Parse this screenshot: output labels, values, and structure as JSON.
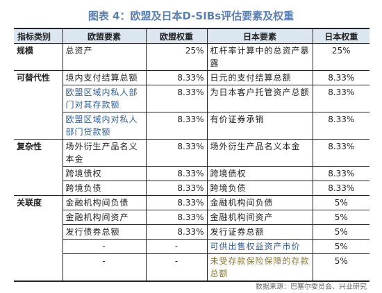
{
  "title": "图表 4：欧盟及日本D-SIBs评估要素及权重",
  "headers": {
    "category": "指标类别",
    "eu": "欧盟要素",
    "eu_weight": "欧盟权重",
    "jp": "日本要素",
    "jp_weight": "日本权重"
  },
  "groups": [
    {
      "category": "规模",
      "rows": [
        {
          "eu": "总资产",
          "eu_weight": "25%",
          "jp": "杠杆率计算中的总资产暴露",
          "jp_weight": "25%"
        }
      ]
    },
    {
      "category": "可替代性",
      "rows": [
        {
          "eu": "境内支付结算总额",
          "eu_weight": "8.33%",
          "jp": "日元的支付结算总额",
          "jp_weight": "8.33%"
        },
        {
          "eu": "欧盟区域内私人部门对其存款额",
          "eu_weight": "8.33%",
          "jp": "为日本客户托管资产总额",
          "jp_weight": "8.33%"
        },
        {
          "eu": "欧盟区域内对私人部门贷款额",
          "eu_weight": "8.33%",
          "jp": "有价证券承销",
          "jp_weight": "8.33%"
        }
      ]
    },
    {
      "category": "复杂性",
      "rows": [
        {
          "eu": "场外衍生产品名义本金",
          "eu_weight": "8.33%",
          "jp": "场外衍生产品名义本金",
          "jp_weight": "8.33%"
        },
        {
          "eu": "跨境债权",
          "eu_weight": "8.33%",
          "jp": "跨境债权",
          "jp_weight": "8.33%"
        },
        {
          "eu": "跨境负债",
          "eu_weight": "8.33%",
          "jp": "跨境负债",
          "jp_weight": "8.33%"
        }
      ]
    },
    {
      "category": "关联度",
      "rows": [
        {
          "eu": "金融机构间负债",
          "eu_weight": "8.33%",
          "jp": "金融机构间负债",
          "jp_weight": "5%"
        },
        {
          "eu": "金融机构间资产",
          "eu_weight": "8.33%",
          "jp": "金融机构间资产",
          "jp_weight": "5%"
        },
        {
          "eu": "发行债券总额",
          "eu_weight": "8.33%",
          "jp": "发行证券总额",
          "jp_weight": "5%"
        },
        {
          "eu": "-",
          "eu_weight": "-",
          "jp": "可供出售权益资产市价",
          "jp_weight": "5%"
        },
        {
          "eu": "-",
          "eu_weight": "-",
          "jp": "未受存款保险保障的存款总额",
          "jp_weight": "5%"
        }
      ]
    }
  ],
  "source": "数据来源：巴塞尔委员会、兴业研究"
}
